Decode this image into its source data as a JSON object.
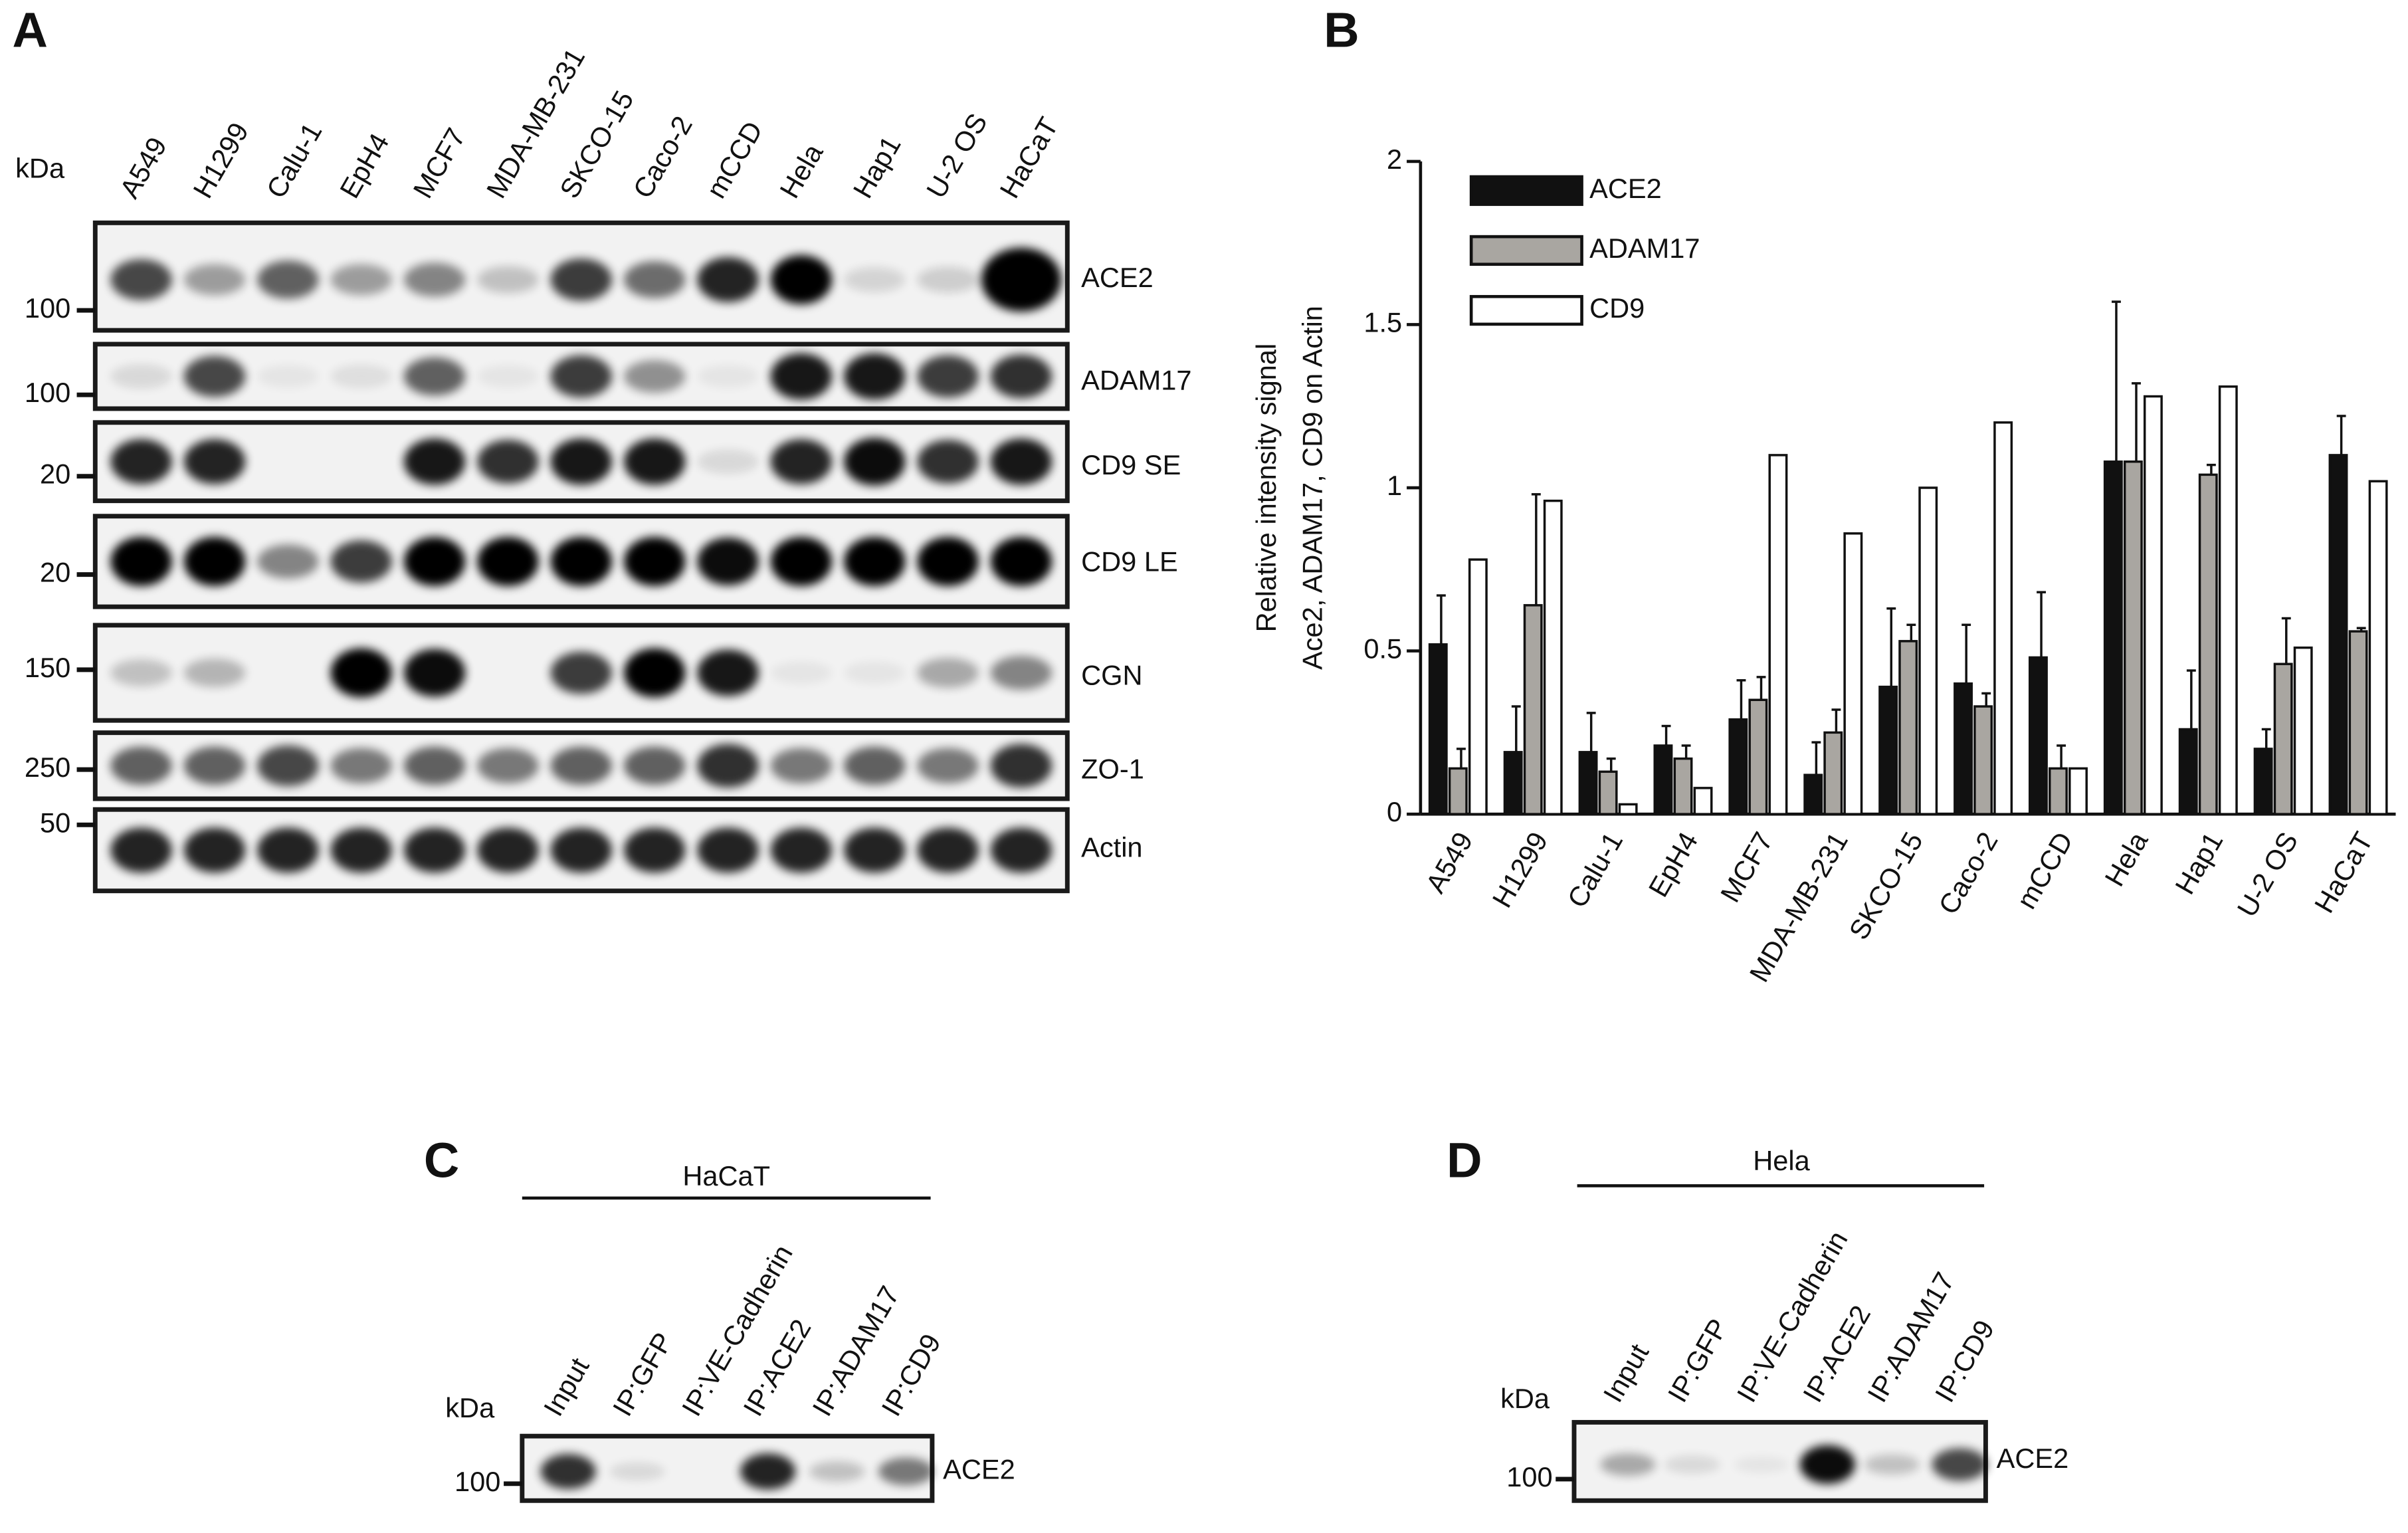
{
  "panels": [
    "A",
    "B",
    "C",
    "D"
  ],
  "blot_a": {
    "kda_label": "kDa",
    "lanes": [
      "A549",
      "H1299",
      "Calu-1",
      "EpH4",
      "MCF7",
      "MDA-MB-231",
      "SKCO-15",
      "Caco-2",
      "mCCD",
      "Hela",
      "Hap1",
      "U-2 OS",
      "HaCaT"
    ],
    "rows": [
      {
        "name": "ACE2",
        "marker": 100
      },
      {
        "name": "ADAM17",
        "marker": 100
      },
      {
        "name": "CD9 SE",
        "marker": 20
      },
      {
        "name": "CD9 LE",
        "marker": 20
      },
      {
        "name": "CGN",
        "marker": 150
      },
      {
        "name": "ZO-1",
        "marker": 250
      },
      {
        "name": "Actin",
        "marker": 50
      }
    ]
  },
  "chart_data": {
    "type": "bar",
    "ylabel": [
      "Relative intensity signal",
      "Ace2, ADAM17, CD9 on Actin"
    ],
    "categories": [
      "A549",
      "H1299",
      "Calu-1",
      "EpH4",
      "MCF7",
      "MDA-MB-231",
      "SKCO-15",
      "Caco-2",
      "mCCD",
      "Hela",
      "Hap1",
      "U-2 OS",
      "HaCaT"
    ],
    "series": [
      {
        "name": "ACE2",
        "color": "#111111",
        "values": [
          0.52,
          0.19,
          0.19,
          0.21,
          0.29,
          0.12,
          0.39,
          0.4,
          0.48,
          1.08,
          0.26,
          0.2,
          1.1
        ],
        "errors": [
          0.15,
          0.14,
          0.12,
          0.06,
          0.12,
          0.1,
          0.24,
          0.18,
          0.2,
          0.49,
          0.18,
          0.06,
          0.12
        ]
      },
      {
        "name": "ADAM17",
        "color": "#a9a6a1",
        "values": [
          0.14,
          0.64,
          0.13,
          0.17,
          0.35,
          0.25,
          0.53,
          0.33,
          0.14,
          1.08,
          1.04,
          0.46,
          0.56
        ],
        "errors": [
          0.06,
          0.34,
          0.04,
          0.04,
          0.07,
          0.07,
          0.05,
          0.04,
          0.07,
          0.24,
          0.03,
          0.14,
          0.01
        ]
      },
      {
        "name": "CD9",
        "color": "#ffffff",
        "values": [
          0.78,
          0.96,
          0.03,
          0.08,
          1.1,
          0.86,
          1.0,
          1.2,
          0.14,
          1.28,
          1.31,
          0.51,
          1.02
        ]
      }
    ],
    "ylim": [
      0,
      2
    ],
    "yticks": [
      0,
      0.5,
      1,
      1.5,
      2
    ]
  },
  "blot_c": {
    "cell_line": "HaCaT",
    "kda_label": "kDa",
    "lanes": [
      "Input",
      "IP:GFP",
      "IP:VE-Cadherin",
      "IP:ACE2",
      "IP:ADAM17",
      "IP:CD9"
    ],
    "marker": 100,
    "target": "ACE2"
  },
  "blot_d": {
    "cell_line": "Hela",
    "kda_label": "kDa",
    "lanes": [
      "Input",
      "IP:GFP",
      "IP:VE-Cadherin",
      "IP:ACE2",
      "IP:ADAM17",
      "IP:CD9"
    ],
    "marker": 100,
    "target": "ACE2"
  }
}
